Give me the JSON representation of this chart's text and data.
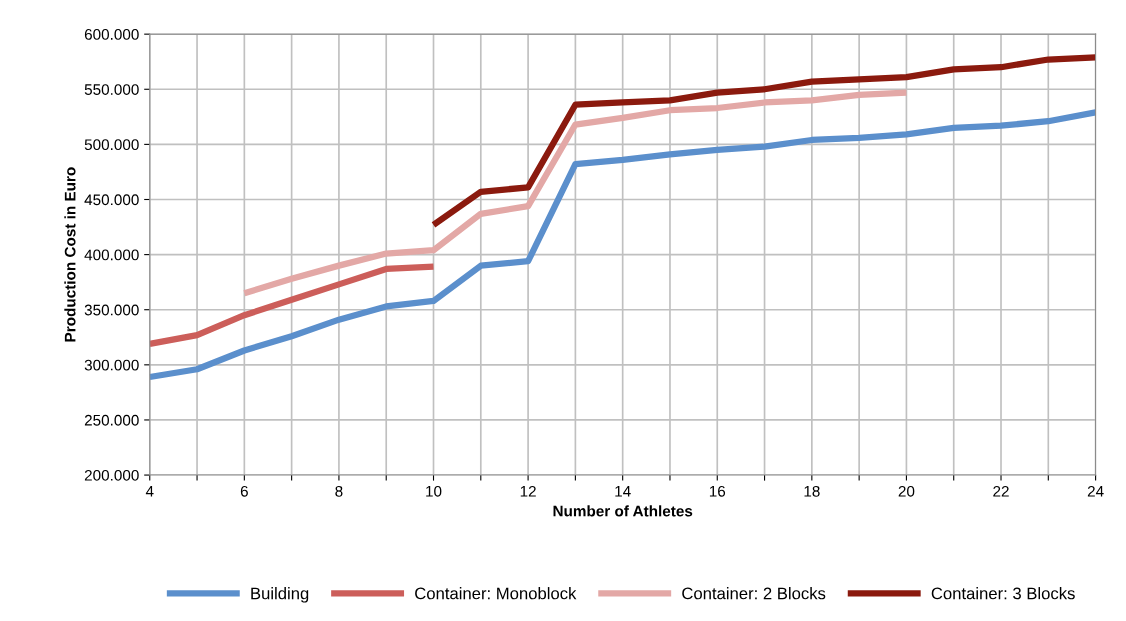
{
  "chart_data": {
    "type": "line",
    "xlabel": "Number of Athletes",
    "ylabel": "Production Cost in Euro",
    "x": [
      4,
      5,
      6,
      7,
      8,
      9,
      10,
      11,
      12,
      13,
      14,
      15,
      16,
      17,
      18,
      19,
      20,
      21,
      22,
      23,
      24
    ],
    "series": [
      {
        "name": "Building",
        "color": "#5b8fcc",
        "values": [
          289000,
          296000,
          313000,
          326000,
          341000,
          353000,
          358000,
          390000,
          394000,
          482000,
          486000,
          491000,
          495000,
          498000,
          504000,
          506000,
          509000,
          515000,
          517000,
          521000,
          529000
        ]
      },
      {
        "name": "Container: Monoblock",
        "color": "#cc5e5a",
        "values": [
          319000,
          327000,
          345000,
          359000,
          373000,
          387000,
          389000,
          null,
          null,
          null,
          null,
          null,
          null,
          null,
          null,
          null,
          null,
          null,
          null,
          null,
          null
        ]
      },
      {
        "name": "Container: 2 Blocks",
        "color": "#e3a8a6",
        "values": [
          null,
          null,
          365000,
          378000,
          390000,
          401000,
          404000,
          437000,
          444000,
          518000,
          524000,
          531000,
          533000,
          538000,
          540000,
          545000,
          547000,
          null,
          null,
          null,
          null
        ]
      },
      {
        "name": "Container: 3 Blocks",
        "color": "#8b1a0e",
        "values": [
          null,
          null,
          null,
          null,
          null,
          null,
          427000,
          457000,
          461000,
          536000,
          538000,
          540000,
          547000,
          550000,
          557000,
          559000,
          561000,
          568000,
          570000,
          577000,
          579000
        ]
      }
    ],
    "xlim": [
      4,
      24
    ],
    "xticks": [
      4,
      {
        "value": 5,
        "label": null
      },
      6,
      {
        "value": 7,
        "label": null
      },
      8,
      {
        "value": 9,
        "label": null
      },
      10,
      {
        "value": 11,
        "label": null
      },
      12,
      {
        "value": 13,
        "label": null
      },
      14,
      {
        "value": 15,
        "label": null
      },
      16,
      {
        "value": 17,
        "label": null
      },
      18,
      {
        "value": 19,
        "label": null
      },
      20,
      {
        "value": 21,
        "label": null
      },
      22,
      {
        "value": 23,
        "label": null
      },
      24
    ],
    "ylim": [
      200000,
      600000
    ],
    "yticks": [
      {
        "value": 200000,
        "label": "200.000"
      },
      {
        "value": 250000,
        "label": "250.000"
      },
      {
        "value": 300000,
        "label": "300.000"
      },
      {
        "value": 350000,
        "label": "350.000"
      },
      {
        "value": 400000,
        "label": "400.000"
      },
      {
        "value": 450000,
        "label": "450.000"
      },
      {
        "value": 500000,
        "label": "500.000"
      },
      {
        "value": 550000,
        "label": "550.000"
      },
      {
        "value": 600000,
        "label": "600.000"
      }
    ],
    "grid": true,
    "legend": "bottom",
    "marker": "none",
    "line_style": "solid"
  }
}
